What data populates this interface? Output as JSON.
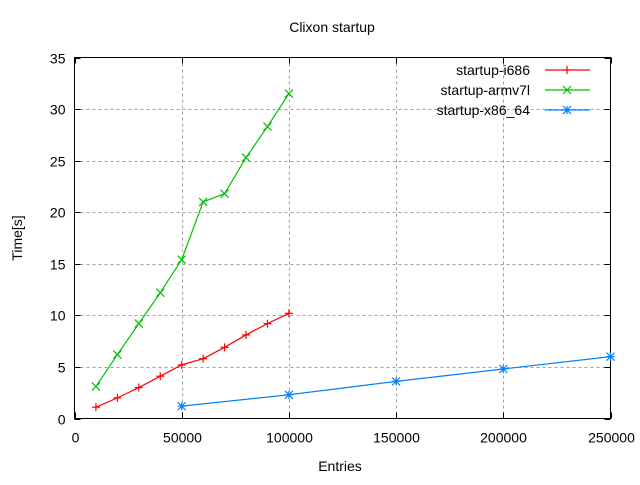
{
  "chart_data": {
    "type": "line",
    "title": "Clixon startup",
    "xlabel": "Entries",
    "ylabel": "Time[s]",
    "xlim": [
      0,
      250000
    ],
    "ylim": [
      0,
      35
    ],
    "xticks": [
      0,
      50000,
      100000,
      150000,
      200000,
      250000
    ],
    "yticks": [
      0,
      5,
      10,
      15,
      20,
      25,
      30,
      35
    ],
    "grid": true,
    "legend_position": "top-right",
    "series": [
      {
        "name": "startup-i686",
        "color": "#ff0000",
        "marker": "plus",
        "x": [
          10000,
          20000,
          30000,
          40000,
          50000,
          60000,
          70000,
          80000,
          90000,
          100000
        ],
        "y": [
          1.1,
          2.0,
          3.0,
          4.1,
          5.2,
          5.8,
          6.9,
          8.1,
          9.2,
          10.2
        ]
      },
      {
        "name": "startup-armv7l",
        "color": "#00c000",
        "marker": "cross",
        "x": [
          10000,
          20000,
          30000,
          40000,
          50000,
          60000,
          70000,
          80000,
          90000,
          100000
        ],
        "y": [
          3.1,
          6.2,
          9.2,
          12.2,
          15.4,
          21.0,
          21.8,
          25.3,
          28.3,
          31.5
        ]
      },
      {
        "name": "startup-x86_64",
        "color": "#0080ff",
        "marker": "star",
        "x": [
          50000,
          100000,
          150000,
          200000,
          250000
        ],
        "y": [
          1.2,
          2.3,
          3.6,
          4.8,
          6.0
        ]
      }
    ]
  }
}
